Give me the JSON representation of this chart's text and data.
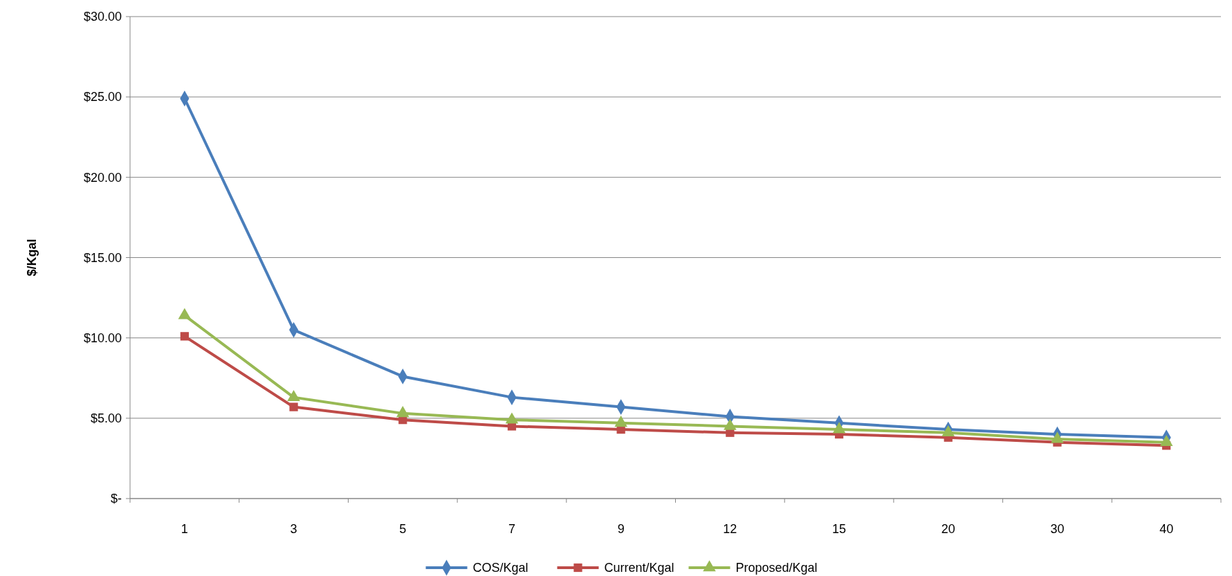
{
  "chart_data": {
    "type": "line",
    "ylabel": "$/Kgal",
    "categories": [
      "1",
      "3",
      "5",
      "7",
      "9",
      "12",
      "15",
      "20",
      "30",
      "40"
    ],
    "series": [
      {
        "name": "COS/Kgal",
        "color": "#4a7ebb",
        "marker": "diamond",
        "values": [
          24.9,
          10.5,
          7.6,
          6.3,
          5.7,
          5.1,
          4.7,
          4.3,
          4.0,
          3.8
        ]
      },
      {
        "name": "Current/Kgal",
        "color": "#be4b48",
        "marker": "square",
        "values": [
          10.1,
          5.7,
          4.9,
          4.5,
          4.3,
          4.1,
          4.0,
          3.8,
          3.5,
          3.3
        ]
      },
      {
        "name": "Proposed/Kgal",
        "color": "#98b954",
        "marker": "triangle",
        "values": [
          11.4,
          6.3,
          5.3,
          4.9,
          4.7,
          4.5,
          4.3,
          4.1,
          3.7,
          3.5
        ]
      }
    ],
    "ylim": [
      0,
      30
    ],
    "yticks": [
      {
        "value": 0,
        "label": "$-"
      },
      {
        "value": 5,
        "label": "$5.00"
      },
      {
        "value": 10,
        "label": "$10.00"
      },
      {
        "value": 15,
        "label": "$15.00"
      },
      {
        "value": 20,
        "label": "$20.00"
      },
      {
        "value": 25,
        "label": "$25.00"
      },
      {
        "value": 30,
        "label": "$30.00"
      }
    ],
    "grid": "y",
    "legend": "bottom",
    "line_style": "solid"
  }
}
